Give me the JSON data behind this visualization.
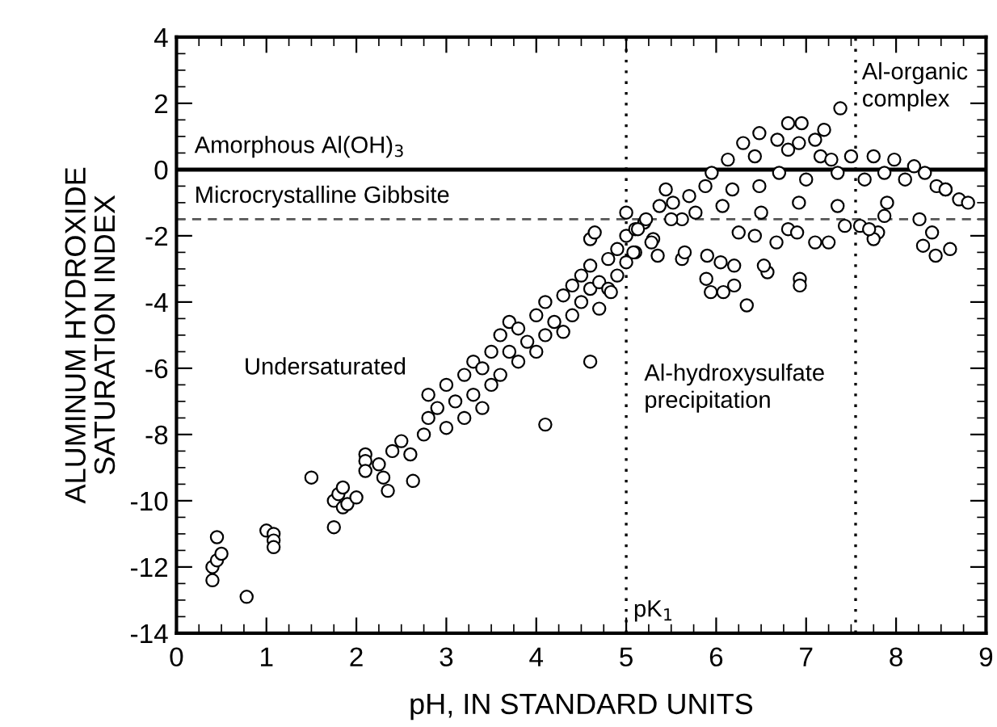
{
  "chart_data": {
    "type": "scatter",
    "xlabel": "pH, IN STANDARD UNITS",
    "ylabel": "ALUMINUM HYDROXIDE\nSATURATION INDEX",
    "xlim": [
      0,
      9
    ],
    "ylim": [
      -14,
      4
    ],
    "xticks": [
      0,
      1,
      2,
      3,
      4,
      5,
      6,
      7,
      8,
      9
    ],
    "yticks": [
      -14,
      -12,
      -10,
      -8,
      -6,
      -4,
      -2,
      0,
      2,
      4
    ],
    "grid": false,
    "legend": false,
    "marker": "circle",
    "ref_lines": [
      {
        "axis": "y",
        "value": 0,
        "label": "Amorphous Al(OH)$_{3}$",
        "line_style": "solid",
        "color": "#000000"
      },
      {
        "axis": "y",
        "value": -1.5,
        "label": "Microcrystalline Gibbsite",
        "line_style": "dashed",
        "color": "#555555"
      },
      {
        "axis": "x",
        "value": 5,
        "label": "pK$_{1}$",
        "line_style": "dotted",
        "color": "#000000"
      },
      {
        "axis": "x",
        "value": 7.55,
        "label": null,
        "line_style": "dotted",
        "color": "#000000"
      }
    ],
    "annotations": [
      "Undersaturated",
      "Al-hydroxysulfate\nprecipitation",
      "Al-organic\ncomplex"
    ],
    "series": [
      {
        "color": "#000000",
        "x": [
          0.4,
          0.4,
          0.45,
          0.5,
          0.45,
          0.78,
          1.0,
          1.08,
          1.08,
          1.08,
          1.5,
          1.75,
          1.75,
          1.8,
          1.85,
          1.85,
          1.9,
          2.0,
          2.1,
          2.1,
          2.1,
          2.3,
          2.35,
          2.25,
          2.4,
          2.5,
          2.6,
          2.63,
          2.75,
          2.8,
          2.8,
          4.1,
          4.6,
          2.9,
          3.0,
          3.0,
          3.1,
          3.2,
          3.2,
          3.3,
          3.3,
          3.4,
          3.4,
          3.5,
          3.5,
          3.6,
          3.6,
          3.7,
          3.7,
          3.8,
          3.8,
          3.9,
          4.0,
          4.0,
          4.1,
          4.1,
          4.2,
          4.3,
          4.3,
          4.4,
          4.4,
          4.5,
          4.5,
          4.6,
          4.6,
          4.7,
          4.7,
          4.8,
          4.8,
          4.9,
          4.9,
          5.0,
          5.0,
          5.1,
          5.1,
          5.2,
          5.3,
          5.35,
          5.0,
          7.38,
          6.8,
          6.95,
          6.48,
          7.2,
          5.44,
          6.34,
          5.94,
          6.08,
          6.2,
          5.89,
          6.57,
          6.93,
          6.93,
          8.44,
          8.6,
          5.62,
          5.65,
          5.9,
          6.05,
          6.2,
          6.53,
          6.25,
          6.43,
          6.67,
          6.8,
          6.9,
          7.1,
          7.25,
          7.43,
          7.6,
          7.8,
          8.3,
          8.4,
          8.26,
          5.62,
          5.5,
          5.77,
          6.07,
          6.5,
          6.92,
          7.35,
          7.9,
          8.7,
          8.8,
          8.55,
          5.95,
          6.13,
          6.3,
          6.43,
          6.68,
          6.8,
          6.92,
          7.1,
          7.16,
          7.28,
          7.5,
          7.75,
          7.98,
          8.2,
          8.32,
          8.45,
          8.55,
          8.1,
          7.87,
          7.65,
          7.35,
          7.0,
          6.7,
          6.48,
          6.18,
          5.88,
          5.7,
          5.52,
          5.37,
          5.22,
          5.13,
          5.28,
          5.08,
          4.6,
          4.65,
          4.83,
          7.87,
          7.75,
          7.7
        ],
        "values": [
          -12.4,
          -12.0,
          -11.8,
          -11.6,
          -11.1,
          -12.9,
          -10.9,
          -11.0,
          -11.2,
          -11.4,
          -9.3,
          -10.8,
          -10.0,
          -9.8,
          -10.2,
          -9.6,
          -10.1,
          -9.9,
          -8.6,
          -8.8,
          -9.1,
          -9.3,
          -9.7,
          -8.9,
          -8.5,
          -8.2,
          -8.6,
          -9.4,
          -8.0,
          -7.5,
          -6.8,
          -7.7,
          -5.8,
          -7.2,
          -7.8,
          -6.5,
          -7.0,
          -6.2,
          -7.5,
          -5.8,
          -6.8,
          -6.0,
          -7.2,
          -5.5,
          -6.5,
          -5.0,
          -6.2,
          -5.5,
          -4.6,
          -5.8,
          -4.8,
          -5.2,
          -4.4,
          -5.5,
          -4.0,
          -5.0,
          -4.6,
          -3.8,
          -4.9,
          -3.5,
          -4.4,
          -3.2,
          -4.0,
          -3.6,
          -2.9,
          -3.4,
          -4.2,
          -2.7,
          -3.6,
          -2.4,
          -3.2,
          -2.0,
          -2.8,
          -1.8,
          -2.5,
          -1.6,
          -2.1,
          -2.6,
          -1.3,
          1.85,
          1.4,
          1.4,
          1.1,
          1.2,
          -0.6,
          -4.1,
          -3.7,
          -3.7,
          -3.5,
          -3.3,
          -3.1,
          -3.3,
          -3.5,
          -2.6,
          -2.4,
          -2.7,
          -2.5,
          -2.6,
          -2.8,
          -2.9,
          -2.9,
          -1.9,
          -2.0,
          -2.2,
          -1.8,
          -1.9,
          -2.2,
          -2.2,
          -1.7,
          -1.7,
          -1.9,
          -2.3,
          -1.9,
          -1.5,
          -1.5,
          -1.5,
          -1.3,
          -1.1,
          -1.3,
          -1.0,
          -1.1,
          -1.0,
          -0.9,
          -1.0,
          -0.6,
          -0.1,
          0.3,
          0.8,
          0.4,
          0.9,
          0.6,
          0.8,
          0.9,
          0.4,
          0.3,
          0.4,
          0.4,
          0.3,
          0.1,
          -0.1,
          -0.5,
          -0.6,
          -0.3,
          -0.1,
          -0.3,
          -0.1,
          -0.3,
          -0.1,
          -0.5,
          -0.6,
          -0.5,
          -0.8,
          -1.0,
          -1.1,
          -1.5,
          -1.8,
          -2.2,
          -2.5,
          -2.1,
          -1.9,
          -3.7,
          -1.4,
          -2.1,
          -1.8
        ]
      }
    ]
  }
}
